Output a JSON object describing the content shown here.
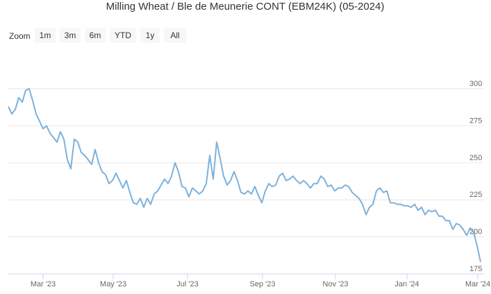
{
  "range_selector": {
    "label": "Zoom",
    "buttons": [
      "1m",
      "3m",
      "6m",
      "YTD",
      "1y",
      "All"
    ]
  },
  "chart_data": {
    "type": "line",
    "title": "Milling Wheat / Ble de Meunerie CONT (EBM24K) (05-2024)",
    "series": [
      {
        "name": "EBM24K",
        "color": "#7cb1dc",
        "values": [
          288,
          283,
          286,
          294,
          291,
          299,
          300,
          292,
          283,
          278,
          273,
          275,
          270,
          267,
          264,
          271,
          266,
          252,
          246,
          266,
          264,
          257,
          255,
          252,
          249,
          259,
          250,
          244,
          242,
          236,
          238,
          243,
          238,
          233,
          238,
          230,
          223,
          222,
          226,
          220,
          226,
          222,
          229,
          231,
          235,
          239,
          236,
          241,
          250,
          244,
          234,
          233,
          227,
          233,
          231,
          229,
          231,
          236,
          255,
          239,
          264,
          253,
          241,
          235,
          238,
          244,
          238,
          230,
          229,
          231,
          229,
          234,
          228,
          223,
          231,
          236,
          234,
          235,
          241,
          243,
          238,
          239,
          241,
          238,
          236,
          238,
          236,
          233,
          236,
          236,
          241,
          239,
          234,
          235,
          231,
          233,
          233,
          235,
          234,
          230,
          228,
          226,
          222,
          215,
          220,
          222,
          231,
          233,
          230,
          231,
          223,
          223,
          222,
          222,
          221,
          221,
          220,
          222,
          218,
          220,
          215,
          218,
          217,
          218,
          214,
          214,
          211,
          211,
          205,
          209,
          208,
          205,
          201,
          206,
          203,
          194,
          183
        ]
      }
    ],
    "xlim": [
      0,
      136
    ],
    "xticks": [
      {
        "value": 10,
        "label": "Mar '23"
      },
      {
        "value": 30.2,
        "label": "May '23"
      },
      {
        "value": 51.6,
        "label": "Jul '23"
      },
      {
        "value": 73.2,
        "label": "Sep '23"
      },
      {
        "value": 94.2,
        "label": "Nov '23"
      },
      {
        "value": 114.8,
        "label": "Jan '24"
      },
      {
        "value": 135.2,
        "label": "Mar '24"
      }
    ],
    "ylim": [
      175,
      315
    ],
    "yticks": [
      175,
      200,
      225,
      250,
      275,
      300
    ],
    "grid": true
  }
}
